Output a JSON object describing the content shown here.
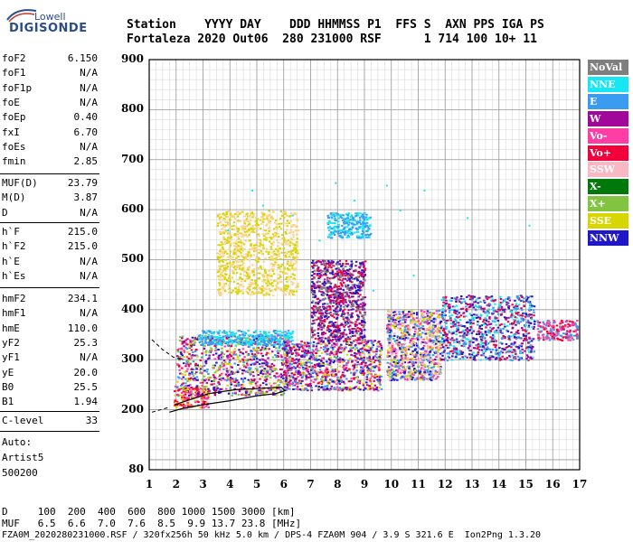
{
  "logo": {
    "line1": "Lowell",
    "line2": "DIGISONDE"
  },
  "header": {
    "row1": "Station    YYYY DAY    DDD HHMMSS P1  FFS S  AXN PPS IGA PS",
    "row2": "Fortaleza 2020 Out06  280 231000 RSF      1 714 100 10+ 11"
  },
  "params_group1": [
    {
      "name": "foF2",
      "value": "6.150"
    },
    {
      "name": "foF1",
      "value": "N/A"
    },
    {
      "name": "foF1p",
      "value": "N/A"
    },
    {
      "name": "foE",
      "value": "N/A"
    },
    {
      "name": "foEp",
      "value": "0.40"
    },
    {
      "name": "fxI",
      "value": "6.70"
    },
    {
      "name": "foEs",
      "value": "N/A"
    },
    {
      "name": "fmin",
      "value": "2.85"
    }
  ],
  "params_group2": [
    {
      "name": "MUF(D)",
      "value": "23.79"
    },
    {
      "name": "M(D)",
      "value": "3.87"
    },
    {
      "name": "D",
      "value": "N/A"
    }
  ],
  "params_group3": [
    {
      "name": "h`F",
      "value": "215.0"
    },
    {
      "name": "h`F2",
      "value": "215.0"
    },
    {
      "name": "h`E",
      "value": "N/A"
    },
    {
      "name": "h`Es",
      "value": "N/A"
    }
  ],
  "params_group4": [
    {
      "name": "hmF2",
      "value": "234.1"
    },
    {
      "name": "hmF1",
      "value": "N/A"
    },
    {
      "name": "hmE",
      "value": "110.0"
    },
    {
      "name": "yF2",
      "value": "25.3"
    },
    {
      "name": "yF1",
      "value": "N/A"
    },
    {
      "name": "yE",
      "value": "20.0"
    },
    {
      "name": "B0",
      "value": "25.5"
    },
    {
      "name": "B1",
      "value": "1.94"
    }
  ],
  "params_group5": [
    {
      "name": "C-level",
      "value": "33"
    }
  ],
  "auto": {
    "line1": "Auto:",
    "line2": "Artist5",
    "line3": "500200"
  },
  "legend": [
    {
      "label": "NoVal",
      "bg": "#7f7f7f",
      "fg": "#ffffff"
    },
    {
      "label": "NNE",
      "bg": "#17e6f5",
      "fg": "#ffffff"
    },
    {
      "label": "E",
      "bg": "#3a9cf0",
      "fg": "#ffffff"
    },
    {
      "label": "W",
      "bg": "#a0079a",
      "fg": "#ffffff"
    },
    {
      "label": "Vo-",
      "bg": "#ff3ea5",
      "fg": "#ffffff"
    },
    {
      "label": "Vo+",
      "bg": "#f2003c",
      "fg": "#ffffff"
    },
    {
      "label": "SSW",
      "bg": "#f8b9c4",
      "fg": "#ffffff"
    },
    {
      "label": "X-",
      "bg": "#00780a",
      "fg": "#ffffff"
    },
    {
      "label": "X+",
      "bg": "#82c341",
      "fg": "#ffffff"
    },
    {
      "label": "SSE",
      "bg": "#d8d600",
      "fg": "#ffffff"
    },
    {
      "label": "NNW",
      "bg": "#1f17c8",
      "fg": "#ffffff"
    }
  ],
  "footer": {
    "row1": "D     100  200  400  600  800 1000 1500 3000 [km]",
    "row2": "MUF   6.5  6.6  7.0  7.6  8.5  9.9 13.7 23.8 [MHz]",
    "row3": "FZA0M_2020280231000.RSF / 320fx256h 50 kHz 5.0 km / DPS-4 FZA0M 904 / 3.9 S 321.6 E  Ion2Png 1.3.20"
  },
  "chart_data": {
    "type": "scatter",
    "title": "",
    "xlabel": "",
    "ylabel": "",
    "xlim": [
      1,
      17
    ],
    "ylim": [
      80,
      900
    ],
    "x_ticks": [
      "1",
      "2",
      "3",
      "4",
      "5",
      "6",
      "7",
      "8",
      "9",
      "10",
      "11",
      "12",
      "13",
      "14",
      "15",
      "16",
      "17"
    ],
    "y_ticks": [
      "80",
      "200",
      "300",
      "400",
      "500",
      "600",
      "700",
      "800",
      "900"
    ],
    "clusters": [
      {
        "x": [
          1.9,
          3.2
        ],
        "y": [
          205,
          250
        ],
        "colors": [
          "#f2003c",
          "#ff3ea5",
          "#d8d600"
        ]
      },
      {
        "x": [
          2.0,
          6.2
        ],
        "y": [
          230,
          350
        ],
        "colors": [
          "#a0079a",
          "#ff3ea5",
          "#f2003c",
          "#3a9cf0",
          "#d8d600",
          "#82c341",
          "#1f17c8"
        ]
      },
      {
        "x": [
          2.8,
          6.3
        ],
        "y": [
          330,
          360
        ],
        "colors": [
          "#3a9cf0",
          "#17e6f5"
        ]
      },
      {
        "x": [
          3.5,
          6.5
        ],
        "y": [
          430,
          600
        ],
        "colors": [
          "#d8d600",
          "#ffd28a"
        ]
      },
      {
        "x": [
          6.0,
          9.6
        ],
        "y": [
          240,
          340
        ],
        "colors": [
          "#f2003c",
          "#ff3ea5",
          "#d8d600",
          "#a0079a",
          "#1f17c8",
          "#3a9cf0"
        ]
      },
      {
        "x": [
          7.0,
          9.0
        ],
        "y": [
          340,
          500
        ],
        "colors": [
          "#1f17c8",
          "#a0079a",
          "#7f7f7f",
          "#f2003c"
        ]
      },
      {
        "x": [
          7.6,
          9.2
        ],
        "y": [
          545,
          595
        ],
        "colors": [
          "#17e6f5",
          "#3a9cf0"
        ]
      },
      {
        "x": [
          9.8,
          11.8
        ],
        "y": [
          260,
          400
        ],
        "colors": [
          "#d8d600",
          "#ff3ea5",
          "#f8b9c4",
          "#1f17c8",
          "#3a9cf0"
        ]
      },
      {
        "x": [
          11.8,
          15.3
        ],
        "y": [
          300,
          430
        ],
        "colors": [
          "#1f17c8",
          "#3a9cf0",
          "#f2003c",
          "#17e6f5",
          "#a0079a"
        ]
      },
      {
        "x": [
          15.4,
          16.9
        ],
        "y": [
          340,
          380
        ],
        "colors": [
          "#f2003c",
          "#ff3ea5",
          "#3a9cf0"
        ]
      }
    ],
    "profile_curve": [
      [
        1.75,
        195
      ],
      [
        2.2,
        202
      ],
      [
        3.0,
        210
      ],
      [
        4.0,
        218
      ],
      [
        5.0,
        228
      ],
      [
        5.7,
        232
      ],
      [
        6.05,
        238
      ],
      [
        5.9,
        245
      ],
      [
        5.2,
        243
      ],
      [
        4.2,
        240
      ],
      [
        3.2,
        232
      ],
      [
        2.4,
        218
      ],
      [
        1.95,
        210
      ]
    ],
    "dashed_curve": [
      [
        1.1,
        340
      ],
      [
        1.5,
        320
      ],
      [
        1.9,
        305
      ],
      [
        2.2,
        300
      ]
    ]
  }
}
